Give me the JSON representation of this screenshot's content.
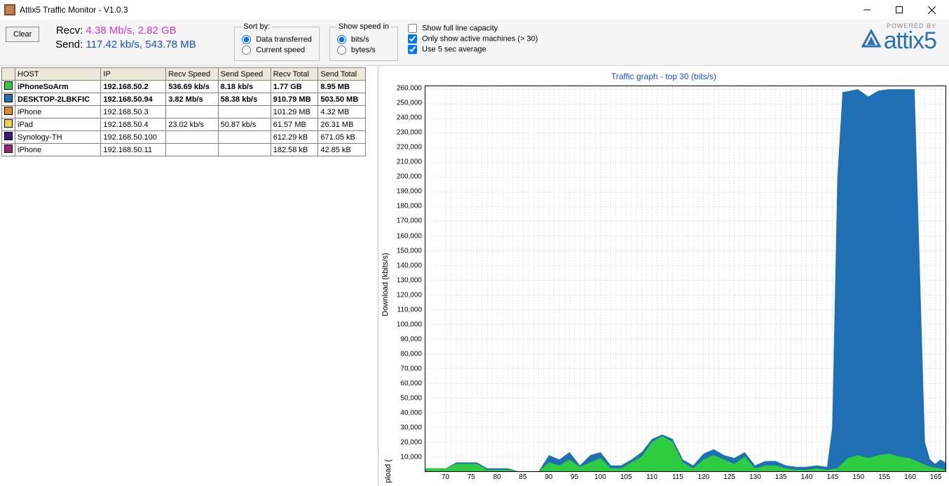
{
  "window": {
    "title": "Attix5 Traffic Monitor - V1.0.3"
  },
  "toolbar": {
    "clear_label": "Clear"
  },
  "stats": {
    "recv_label": "Recv:",
    "recv_rate": "4.38 Mb/s,",
    "recv_total": "2.82 GB",
    "send_label": "Send:",
    "send_rate": "117.42 kb/s,",
    "send_total": "543.78 MB"
  },
  "sortby": {
    "legend": "Sort by:",
    "opt_data": "Data transferred",
    "opt_speed": "Current speed",
    "selected": "opt_data"
  },
  "speedin": {
    "legend": "Show speed in",
    "opt_bits": "bits/s",
    "opt_bytes": "bytes/s",
    "selected": "opt_bits"
  },
  "checks": {
    "full_capacity": {
      "label": "Show full line capacity",
      "checked": false
    },
    "only_active": {
      "label": "Only show active machines (> 30)",
      "checked": true
    },
    "avg5": {
      "label": "Use 5 sec average",
      "checked": true
    }
  },
  "logo": {
    "powered": "POWERED BY",
    "brand": "attix5"
  },
  "table": {
    "cols": [
      "",
      "HOST",
      "IP",
      "Recv Speed",
      "Send Speed",
      "Recv Total",
      "Send Total"
    ],
    "rows": [
      {
        "color": "#2ecc40",
        "host": "iPhoneSoArm",
        "ip": "192.168.50.2",
        "rspd": "536.69 kb/s",
        "sspd": "8.18 kb/s",
        "rtot": "1.77 GB",
        "stot": "8.95 MB",
        "bold": true
      },
      {
        "color": "#1f6fb5",
        "host": "DESKTOP-2LBKFIC",
        "ip": "192.168.50.94",
        "rspd": "3.82 Mb/s",
        "sspd": "58.38 kb/s",
        "rtot": "910.79 MB",
        "stot": "503.50 MB",
        "bold": true
      },
      {
        "color": "#e58e1a",
        "host": "iPhone",
        "ip": "192.168.50.3",
        "rspd": "",
        "sspd": "",
        "rtot": "101.29 MB",
        "stot": "4.32 MB",
        "bold": false
      },
      {
        "color": "#f2d43a",
        "host": "iPad",
        "ip": "192.168.50.4",
        "rspd": "23.02 kb/s",
        "sspd": "50.87 kb/s",
        "rtot": "61.57 MB",
        "stot": "26.31 MB",
        "bold": false
      },
      {
        "color": "#3a1a7a",
        "host": "Synology-TH",
        "ip": "192.168.50.100",
        "rspd": "",
        "sspd": "",
        "rtot": "612.29 kB",
        "stot": "671.05 kB",
        "bold": false
      },
      {
        "color": "#a02080",
        "host": "iPhone",
        "ip": "192.168.50.11",
        "rspd": "",
        "sspd": "",
        "rtot": "182.58 kB",
        "stot": "42.85 kB",
        "bold": false
      }
    ]
  },
  "chart": {
    "title": "Traffic graph - top 30 (bits/s)",
    "y_label_top": "Download (kbits/s)",
    "y_label_bottom": "pload (",
    "type": "area-stacked",
    "background_color": "#ffffff",
    "grid_color": "#c8c8c8",
    "axis_color": "#000000",
    "x_min": 66,
    "x_max": 167,
    "x_tick_start": 70,
    "x_tick_step": 5,
    "y_min": 0,
    "y_max": 262000,
    "y_tick_start": 10000,
    "y_tick_step": 10000,
    "y_tick_end": 260000,
    "series": [
      {
        "name": "DESKTOP-2LBKFIC",
        "color": "#1f6fb5",
        "points": [
          [
            66,
            2000
          ],
          [
            70,
            2000
          ],
          [
            72,
            6000
          ],
          [
            76,
            6000
          ],
          [
            78,
            2000
          ],
          [
            82,
            2000
          ],
          [
            84,
            0
          ],
          [
            88,
            0
          ],
          [
            90,
            11000
          ],
          [
            92,
            8000
          ],
          [
            94,
            13000
          ],
          [
            96,
            4000
          ],
          [
            98,
            11000
          ],
          [
            100,
            13000
          ],
          [
            102,
            4000
          ],
          [
            104,
            4000
          ],
          [
            106,
            8000
          ],
          [
            108,
            13000
          ],
          [
            110,
            22000
          ],
          [
            112,
            25000
          ],
          [
            114,
            22000
          ],
          [
            116,
            8000
          ],
          [
            118,
            4000
          ],
          [
            120,
            12000
          ],
          [
            122,
            15000
          ],
          [
            124,
            11000
          ],
          [
            126,
            9000
          ],
          [
            128,
            13000
          ],
          [
            130,
            4000
          ],
          [
            132,
            7000
          ],
          [
            134,
            7000
          ],
          [
            136,
            4000
          ],
          [
            138,
            3000
          ],
          [
            140,
            3000
          ],
          [
            142,
            4000
          ],
          [
            144,
            3000
          ],
          [
            145,
            30000
          ],
          [
            146,
            200000
          ],
          [
            147,
            258000
          ],
          [
            150,
            260000
          ],
          [
            152,
            255000
          ],
          [
            154,
            259000
          ],
          [
            156,
            260000
          ],
          [
            158,
            260000
          ],
          [
            160,
            260000
          ],
          [
            161,
            260000
          ],
          [
            162,
            140000
          ],
          [
            163,
            20000
          ],
          [
            164,
            8000
          ],
          [
            165,
            5000
          ],
          [
            166,
            8000
          ],
          [
            167,
            6000
          ]
        ]
      },
      {
        "name": "iPhoneSoArm",
        "color": "#2ecc40",
        "points": [
          [
            66,
            2000
          ],
          [
            70,
            2000
          ],
          [
            72,
            5000
          ],
          [
            76,
            5000
          ],
          [
            78,
            1000
          ],
          [
            82,
            1000
          ],
          [
            84,
            0
          ],
          [
            88,
            0
          ],
          [
            90,
            6000
          ],
          [
            92,
            4000
          ],
          [
            94,
            8000
          ],
          [
            96,
            3000
          ],
          [
            98,
            6000
          ],
          [
            100,
            9000
          ],
          [
            102,
            2000
          ],
          [
            104,
            2000
          ],
          [
            106,
            6000
          ],
          [
            108,
            10000
          ],
          [
            110,
            20000
          ],
          [
            112,
            24000
          ],
          [
            114,
            20000
          ],
          [
            116,
            6000
          ],
          [
            118,
            2000
          ],
          [
            120,
            8000
          ],
          [
            122,
            11000
          ],
          [
            124,
            8000
          ],
          [
            126,
            5000
          ],
          [
            128,
            10000
          ],
          [
            130,
            2000
          ],
          [
            132,
            4000
          ],
          [
            134,
            4000
          ],
          [
            136,
            2000
          ],
          [
            138,
            1000
          ],
          [
            140,
            1000
          ],
          [
            142,
            2000
          ],
          [
            144,
            1000
          ],
          [
            146,
            2000
          ],
          [
            148,
            9000
          ],
          [
            150,
            11000
          ],
          [
            152,
            9000
          ],
          [
            154,
            11000
          ],
          [
            156,
            12000
          ],
          [
            158,
            10000
          ],
          [
            160,
            9000
          ],
          [
            162,
            6000
          ],
          [
            164,
            3000
          ],
          [
            166,
            2000
          ],
          [
            167,
            1000
          ]
        ]
      }
    ]
  }
}
